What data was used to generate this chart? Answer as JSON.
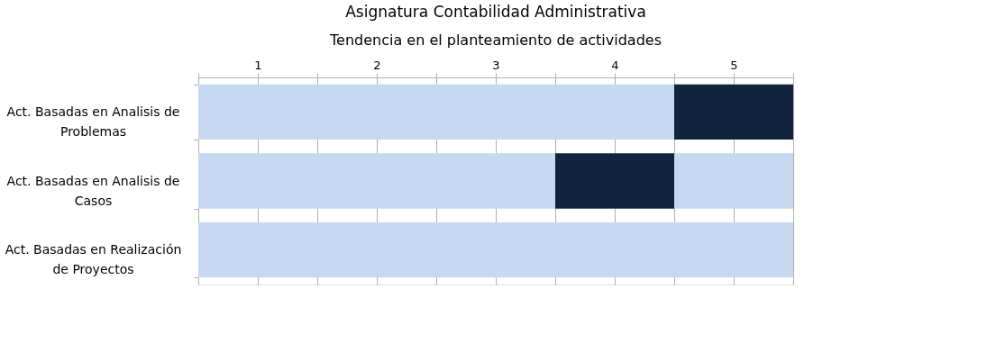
{
  "chart_data": {
    "type": "bar",
    "orientation": "horizontal",
    "stacked": true,
    "title": "Asignatura Contabilidad Administrativa",
    "subtitle": "Tendencia en el planteamiento de actividades",
    "categories": [
      "Act. Basadas en Analisis de Problemas",
      "Act. Basadas en Analisis de Casos",
      "Act. Basadas en Realización de Proyectos"
    ],
    "series": [
      {
        "color": "#c6d9f1",
        "values": [
          4,
          3,
          5
        ]
      },
      {
        "color": "#10243e",
        "values": [
          1,
          1,
          null
        ]
      },
      {
        "color": "#c6d9f1",
        "values": [
          null,
          1,
          null
        ]
      }
    ],
    "xlim": [
      0,
      5
    ],
    "xticks": [
      {
        "value": 0,
        "label": null
      },
      {
        "value": 0.5,
        "label": "1"
      },
      {
        "value": 1,
        "label": null
      },
      {
        "value": 1.5,
        "label": "2"
      },
      {
        "value": 2,
        "label": null
      },
      {
        "value": 2.5,
        "label": "3"
      },
      {
        "value": 3,
        "label": null
      },
      {
        "value": 3.5,
        "label": "4"
      },
      {
        "value": 4,
        "label": null
      },
      {
        "value": 4.5,
        "label": "5"
      },
      {
        "value": 5,
        "label": null
      }
    ],
    "grid": "x"
  }
}
